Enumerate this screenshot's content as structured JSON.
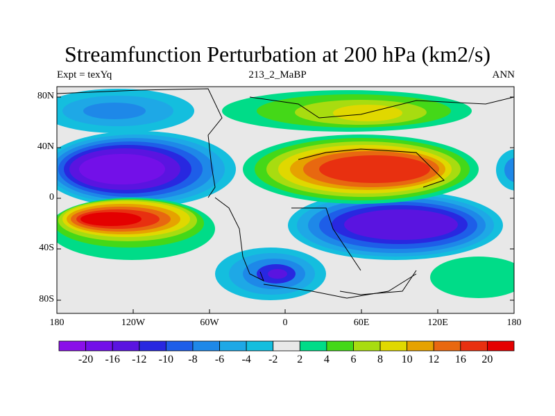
{
  "title": "Streamfunction Perturbation at 200 hPa (km2/s)",
  "subtitle_left": "Expt = texYq",
  "subtitle_center": "213_2_MaBP",
  "subtitle_right": "ANN",
  "y_axis_labels": [
    "80N",
    "40N",
    "0",
    "40S",
    "80S"
  ],
  "x_axis_labels": [
    "180",
    "120W",
    "60W",
    "0",
    "60E",
    "120E",
    "180"
  ],
  "colorbar": {
    "labels": [
      "-20",
      "-16",
      "-12",
      "-10",
      "-8",
      "-6",
      "-4",
      "-2",
      "2",
      "4",
      "6",
      "8",
      "10",
      "12",
      "16",
      "20"
    ],
    "colors": [
      "#8a10e8",
      "#7310e8",
      "#5a14e0",
      "#2828e0",
      "#1e5ee8",
      "#1e88e8",
      "#1ea8e6",
      "#14bede",
      "#e8e8e8",
      "#00dc88",
      "#44d818",
      "#a8dc10",
      "#e0d800",
      "#e6a200",
      "#e86810",
      "#e83010",
      "#e40000"
    ]
  },
  "colors": {
    "map_background": "#e8e8e8",
    "coast": "#000000"
  }
}
